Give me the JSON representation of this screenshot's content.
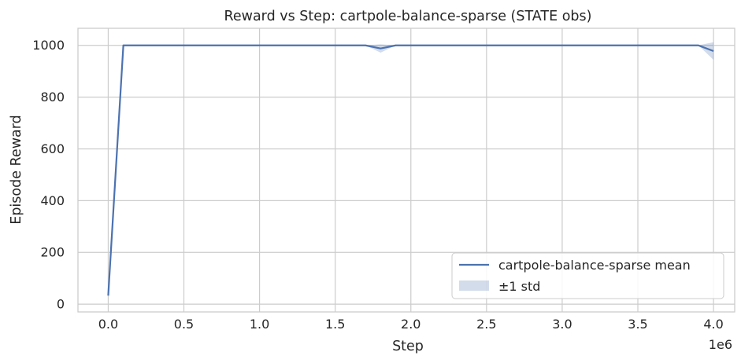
{
  "chart_data": {
    "type": "line",
    "title": "Reward vs Step: cartpole-balance-sparse (STATE obs)",
    "xlabel": "Step",
    "ylabel": "Episode Reward",
    "x_offset_label": "1e6",
    "xlim": [
      -0.2,
      4.14
    ],
    "ylim": [
      -30,
      1066
    ],
    "x_ticks": [
      0.0,
      0.5,
      1.0,
      1.5,
      2.0,
      2.5,
      3.0,
      3.5,
      4.0
    ],
    "x_tick_labels": [
      "0.0",
      "0.5",
      "1.0",
      "1.5",
      "2.0",
      "2.5",
      "3.0",
      "3.5",
      "4.0"
    ],
    "y_ticks": [
      0,
      200,
      400,
      600,
      800,
      1000
    ],
    "y_tick_labels": [
      "0",
      "200",
      "400",
      "600",
      "800",
      "1000"
    ],
    "grid": true,
    "legend_position": "lower-right",
    "colors": {
      "line": "#4c72b0",
      "band": "#4c72b0",
      "grid": "#cccccc",
      "spine": "#cccccc"
    },
    "series": [
      {
        "name": "cartpole-balance-sparse mean",
        "x": [
          0.0,
          0.1,
          0.2,
          0.3,
          0.4,
          0.5,
          0.6,
          0.7,
          0.8,
          0.9,
          1.0,
          1.1,
          1.2,
          1.3,
          1.4,
          1.5,
          1.6,
          1.7,
          1.8,
          1.9,
          2.0,
          2.1,
          2.2,
          2.3,
          2.4,
          2.5,
          2.6,
          2.7,
          2.8,
          2.9,
          3.0,
          3.1,
          3.2,
          3.3,
          3.4,
          3.5,
          3.6,
          3.7,
          3.8,
          3.9,
          4.0
        ],
        "y": [
          33,
          1000,
          1000,
          1000,
          1000,
          1000,
          1000,
          1000,
          1000,
          1000,
          1000,
          1000,
          1000,
          1000,
          1000,
          1000,
          1000,
          1000,
          988,
          1000,
          1000,
          1000,
          1000,
          1000,
          1000,
          1000,
          1000,
          1000,
          1000,
          1000,
          1000,
          1000,
          1000,
          1000,
          1000,
          1000,
          1000,
          1000,
          1000,
          1000,
          978
        ]
      }
    ],
    "band": {
      "name": "±1 std",
      "lower": [
        33,
        1000,
        1000,
        1000,
        1000,
        1000,
        1000,
        1000,
        1000,
        1000,
        1000,
        1000,
        1000,
        1000,
        1000,
        1000,
        1000,
        1000,
        972,
        1000,
        1000,
        1000,
        1000,
        1000,
        1000,
        1000,
        1000,
        1000,
        1000,
        1000,
        1000,
        1000,
        1000,
        1000,
        1000,
        1000,
        1000,
        1000,
        1000,
        1000,
        944
      ],
      "upper": [
        33,
        1000,
        1000,
        1000,
        1000,
        1000,
        1000,
        1000,
        1000,
        1000,
        1000,
        1000,
        1000,
        1000,
        1000,
        1000,
        1000,
        1000,
        1004,
        1000,
        1000,
        1000,
        1000,
        1000,
        1000,
        1000,
        1000,
        1000,
        1000,
        1000,
        1000,
        1000,
        1000,
        1000,
        1000,
        1000,
        1000,
        1000,
        1000,
        1000,
        1012
      ]
    }
  }
}
